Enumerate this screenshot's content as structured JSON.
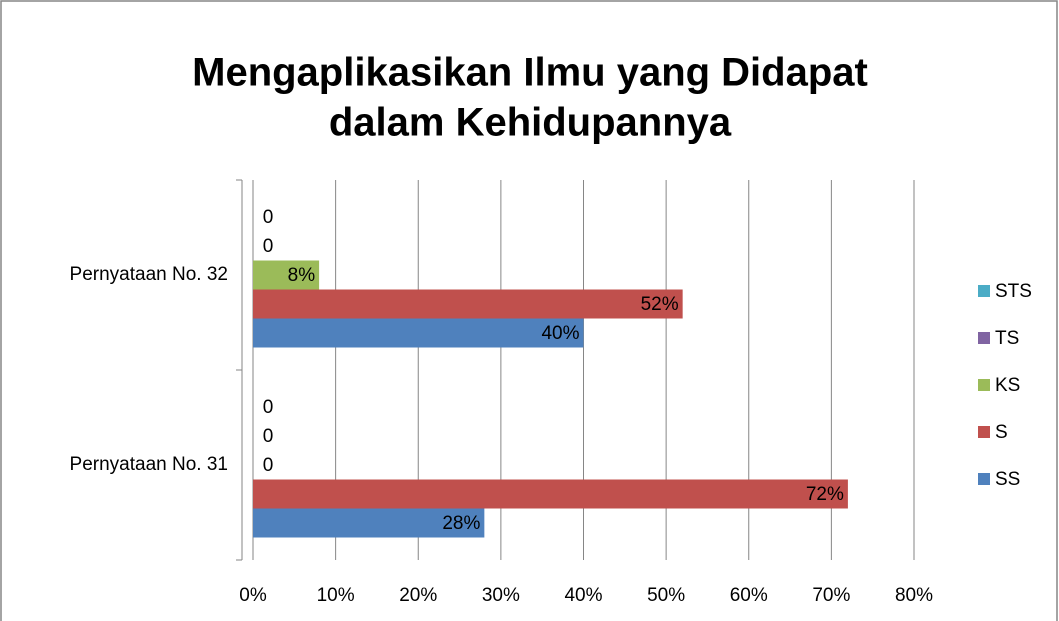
{
  "chart_data": {
    "type": "bar",
    "orientation": "horizontal",
    "title": [
      "Mengaplikasikan Ilmu yang Didapat",
      "dalam Kehidupannya"
    ],
    "categories": [
      "Pernyataan No. 31",
      "Pernyataan No. 32"
    ],
    "series": [
      {
        "name": "SS",
        "color": "#4f81bd",
        "values": [
          28,
          40
        ],
        "value_labels": [
          "28%",
          "40%"
        ]
      },
      {
        "name": "S",
        "color": "#c0504d",
        "values": [
          72,
          52
        ],
        "value_labels": [
          "72%",
          "52%"
        ]
      },
      {
        "name": "KS",
        "color": "#9bbb59",
        "values": [
          0,
          8
        ],
        "value_labels": [
          "0",
          "8%"
        ]
      },
      {
        "name": "TS",
        "color": "#8064a2",
        "values": [
          0,
          0
        ]
      },
      {
        "name": "STS",
        "color": "#4bacc6",
        "values": [
          0,
          0
        ]
      }
    ],
    "xlim": [
      0,
      80
    ],
    "xticks": [
      {
        "value": 0,
        "label": "0%"
      },
      {
        "value": 10,
        "label": "10%"
      },
      {
        "value": 20,
        "label": "20%"
      },
      {
        "value": 30,
        "label": "30%"
      },
      {
        "value": 40,
        "label": "40%"
      },
      {
        "value": 50,
        "label": "50%"
      },
      {
        "value": 60,
        "label": "60%"
      },
      {
        "value": 70,
        "label": "70%"
      },
      {
        "value": 80,
        "label": "80%"
      }
    ],
    "grid": true,
    "legend": "right"
  }
}
